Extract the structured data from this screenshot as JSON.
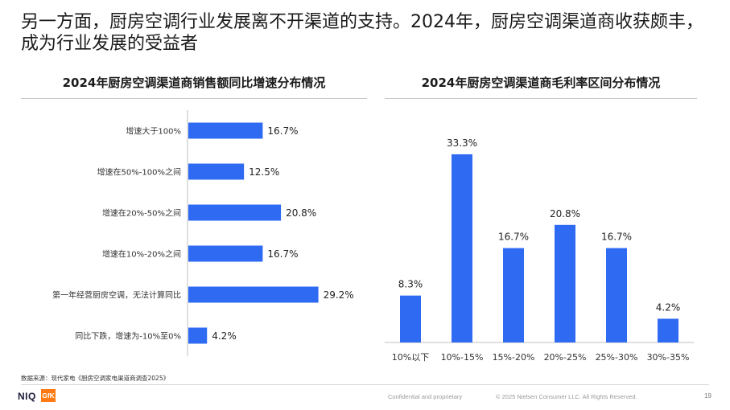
{
  "title": "另一方面，厨房空调行业发展离不开渠道的支持。2024年，厨房空调渠道商收获颇丰，成为行业发展的受益者",
  "source": "数据来源：现代家电《厨房空调家电渠道商调查2025》",
  "footer": {
    "logo_niq": "NIQ",
    "logo_gfk": "GfK",
    "confidential": "Confidential and proprietary",
    "copyright": "© 2025 Nielsen Consumer LLC. All Rights Reserved.",
    "page": "19"
  },
  "colors": {
    "bar": "#2f6bf2",
    "axis": "#bfbfbf"
  },
  "chart_data": [
    {
      "type": "bar",
      "orientation": "horizontal",
      "title": "2024年厨房空调渠道商销售额同比增速分布情况",
      "categories": [
        "增速大于100%",
        "增速在50%-100%之间",
        "增速在20%-50%之间",
        "增速在10%-20%之间",
        "第一年经营厨房空调，无法计算同比",
        "同比下跌，增速为-10%至0%"
      ],
      "values": [
        16.7,
        12.5,
        20.8,
        16.7,
        29.2,
        4.2
      ],
      "value_labels": [
        "16.7%",
        "12.5%",
        "20.8%",
        "16.7%",
        "29.2%",
        "4.2%"
      ],
      "unit": "%",
      "xlim": [
        0,
        30
      ]
    },
    {
      "type": "bar",
      "orientation": "vertical",
      "title": "2024年厨房空调渠道商毛利率区间分布情况",
      "categories": [
        "10%以下",
        "10%-15%",
        "15%-20%",
        "20%-25%",
        "25%-30%",
        "30%-35%"
      ],
      "values": [
        8.3,
        33.3,
        16.7,
        20.8,
        16.7,
        4.2
      ],
      "value_labels": [
        "8.3%",
        "33.3%",
        "16.7%",
        "20.8%",
        "16.7%",
        "4.2%"
      ],
      "unit": "%",
      "ylim": [
        0,
        34
      ]
    }
  ]
}
